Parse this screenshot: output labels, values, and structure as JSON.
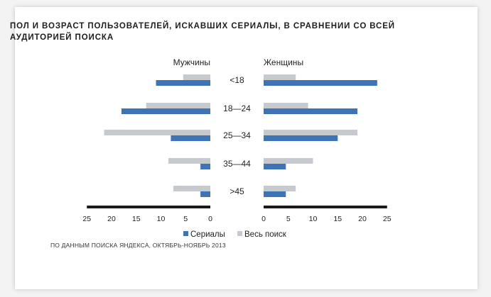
{
  "colors": {
    "series_serials": "#3e73b5",
    "series_all": "#c6cace",
    "axis": "#1a1a1a",
    "text": "#222222"
  },
  "title": "ПОЛ И ВОЗРАСТ ПОЛЬЗОВАТЕЛЕЙ, ИСКАВШИХ СЕРИАЛЫ, В СРАВНЕНИИ СО ВСЕЙ АУДИТОРИЕЙ ПОИСКА",
  "source": "ПО ДАННЫМ ПОИСКА ЯНДЕКСА, ОКТЯБРЬ-НОЯБРЬ 2013",
  "chart_data": {
    "type": "bar",
    "orientation": "horizontal",
    "title": "ПОЛ И ВОЗРАСТ ПОЛЬЗОВАТЕЛЕЙ, ИСКАВШИХ СЕРИАЛЫ, В СРАВНЕНИИ СО ВСЕЙ АУДИТОРИЕЙ ПОИСКА",
    "categories": [
      "<18",
      "18—24",
      "25—34",
      "35—44",
      ">45"
    ],
    "panels": [
      {
        "label": "Мужчины",
        "direction": "left",
        "series": [
          {
            "name": "Сериалы",
            "values": [
              11,
              18,
              8,
              2,
              2
            ]
          },
          {
            "name": "Весь поиск",
            "values": [
              5.5,
              13,
              21.5,
              8.5,
              7.5
            ]
          }
        ],
        "ticks": [
          "25",
          "20",
          "15",
          "10",
          "5",
          "0"
        ],
        "xlim": [
          0,
          25
        ]
      },
      {
        "label": "Женщины",
        "direction": "right",
        "series": [
          {
            "name": "Сериалы",
            "values": [
              23,
              19,
              15,
              4.5,
              4.5
            ]
          },
          {
            "name": "Весь поиск",
            "values": [
              6.5,
              9,
              19,
              10,
              6.5
            ]
          }
        ],
        "ticks": [
          "0",
          "5",
          "10",
          "15",
          "20",
          "25"
        ],
        "xlim": [
          0,
          25
        ]
      }
    ],
    "legend": [
      "Сериалы",
      "Весь поиск"
    ],
    "legend_position": "bottom-center",
    "grid": false
  }
}
